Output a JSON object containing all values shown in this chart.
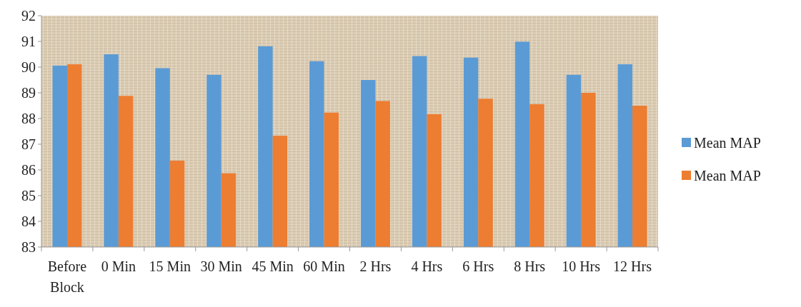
{
  "chart_data": {
    "type": "bar",
    "categories": [
      "Before Block",
      "0 Min",
      "15 Min",
      "30 Min",
      "45 Min",
      "60 Min",
      "2 Hrs",
      "4 Hrs",
      "6 Hrs",
      "8 Hrs",
      "10 Hrs",
      "12 Hrs"
    ],
    "series": [
      {
        "name": "Mean MAP",
        "color": "#5b9bd5",
        "values": [
          90.06,
          90.5,
          89.96,
          89.7,
          90.81,
          90.23,
          89.5,
          90.43,
          90.37,
          90.99,
          89.7,
          90.11
        ]
      },
      {
        "name": "Mean MAP",
        "color": "#ed7d31",
        "values": [
          90.11,
          88.88,
          86.36,
          85.87,
          87.33,
          88.23,
          88.68,
          88.17,
          88.77,
          88.56,
          89.0,
          88.5
        ]
      }
    ],
    "ylim": [
      83,
      92
    ],
    "yticks": [
      83,
      84,
      85,
      86,
      87,
      88,
      89,
      90,
      91,
      92
    ],
    "grid": false,
    "legend": "right"
  }
}
